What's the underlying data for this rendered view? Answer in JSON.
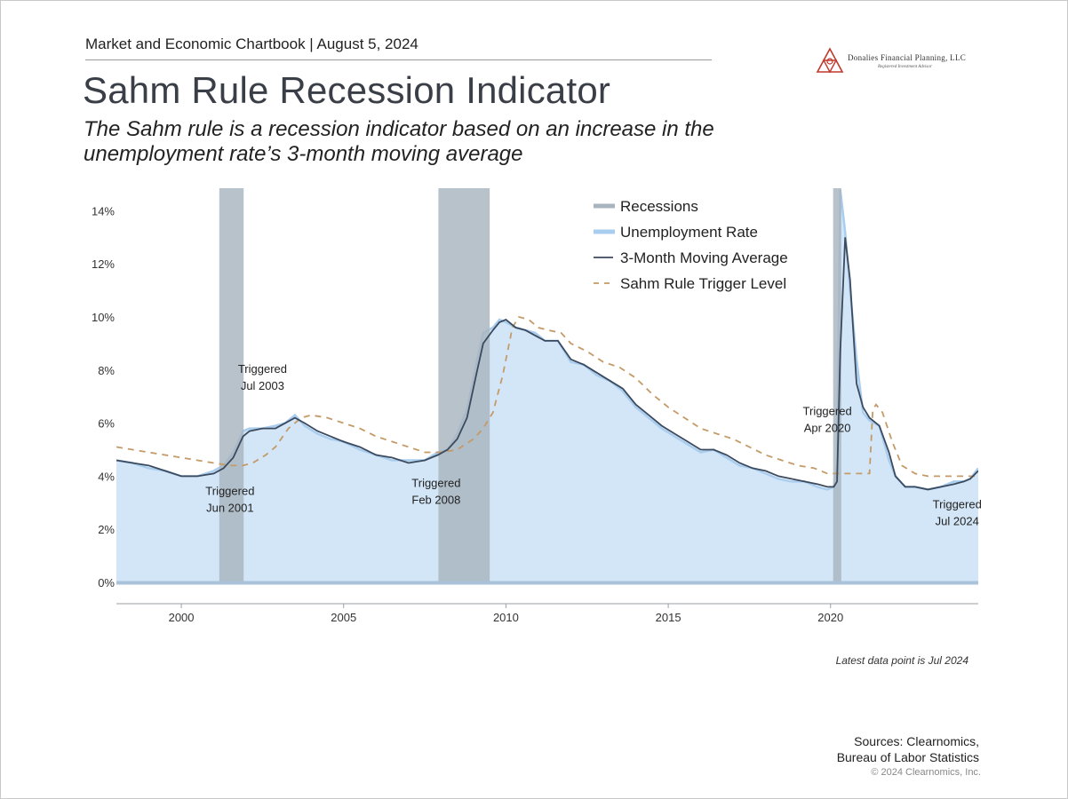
{
  "header": {
    "title_line": "Market and Economic Chartbook | August 5, 2024",
    "brand": "Donalies Financial Planning, LLC",
    "brand_sub": "Registered Investment Advisor"
  },
  "title": "Sahm Rule Recession Indicator",
  "subtitle_line1": "The Sahm rule is a recession indicator based on an increase in the",
  "subtitle_line2": "unemployment rate’s 3-month moving average",
  "footer": {
    "note": "Latest data point is Jul 2024",
    "sources_line1": "Sources: Clearnomics,",
    "sources_line2": "Bureau of Labor Statistics",
    "copyright": "© 2024 Clearnomics, Inc."
  },
  "colors": {
    "recession": "#a8b4be",
    "unemployment_fill": "#d3e6f7",
    "unemployment_line": "#a9cdee",
    "moving_average": "#3c4a5e",
    "trigger": "#c49a68",
    "brand_red": "#c0392b"
  },
  "chart_data": {
    "type": "line",
    "xlim": [
      1998.0,
      2024.55
    ],
    "ylim": [
      0,
      14
    ],
    "x_ticks": [
      2000,
      2005,
      2010,
      2015,
      2020
    ],
    "x_tick_labels": [
      "2000",
      "2005",
      "2010",
      "2015",
      "2020"
    ],
    "y_ticks": [
      0,
      2,
      4,
      6,
      8,
      10,
      12,
      14
    ],
    "y_tick_labels": [
      "0%",
      "2%",
      "4%",
      "6%",
      "8%",
      "10%",
      "12%",
      "14%"
    ],
    "legend": {
      "position": "top-right",
      "items": [
        {
          "label": "Recessions",
          "kind": "recession"
        },
        {
          "label": "Unemployment Rate",
          "kind": "unemployment"
        },
        {
          "label": "3-Month Moving Average",
          "kind": "ma"
        },
        {
          "label": "Sahm Rule Trigger Level",
          "kind": "trigger"
        }
      ]
    },
    "recessions": [
      {
        "start": 2001.17,
        "end": 2001.92
      },
      {
        "start": 2007.92,
        "end": 2009.5
      },
      {
        "start": 2020.08,
        "end": 2020.33
      }
    ],
    "series": [
      {
        "name": "Unemployment Rate",
        "x": [
          1998.0,
          1998.5,
          1999.0,
          1999.5,
          2000.0,
          2000.5,
          2001.0,
          2001.3,
          2001.6,
          2001.9,
          2002.1,
          2002.5,
          2002.9,
          2003.2,
          2003.5,
          2003.8,
          2004.2,
          2004.6,
          2005.0,
          2005.5,
          2006.0,
          2006.5,
          2007.0,
          2007.5,
          2007.9,
          2008.2,
          2008.5,
          2008.8,
          2009.1,
          2009.3,
          2009.6,
          2009.8,
          2010.0,
          2010.3,
          2010.6,
          2010.9,
          2011.2,
          2011.6,
          2012.0,
          2012.4,
          2012.8,
          2013.2,
          2013.6,
          2014.0,
          2014.4,
          2014.8,
          2015.2,
          2015.6,
          2016.0,
          2016.4,
          2016.8,
          2017.2,
          2017.6,
          2018.0,
          2018.4,
          2018.8,
          2019.2,
          2019.6,
          2019.9,
          2020.1,
          2020.2,
          2020.3,
          2020.45,
          2020.6,
          2020.8,
          2021.0,
          2021.2,
          2021.5,
          2021.8,
          2022.0,
          2022.3,
          2022.6,
          2023.0,
          2023.4,
          2023.8,
          2024.1,
          2024.3,
          2024.55
        ],
        "values": [
          4.6,
          4.5,
          4.3,
          4.2,
          4.0,
          4.0,
          4.2,
          4.4,
          4.9,
          5.7,
          5.8,
          5.8,
          5.9,
          6.0,
          6.3,
          5.9,
          5.6,
          5.4,
          5.3,
          5.0,
          4.8,
          4.6,
          4.6,
          4.6,
          4.9,
          5.0,
          5.6,
          6.5,
          8.3,
          9.4,
          9.6,
          9.9,
          9.8,
          9.6,
          9.5,
          9.4,
          9.1,
          9.1,
          8.3,
          8.2,
          7.8,
          7.6,
          7.2,
          6.6,
          6.2,
          5.8,
          5.5,
          5.2,
          4.9,
          5.0,
          4.7,
          4.4,
          4.3,
          4.1,
          3.9,
          3.8,
          3.8,
          3.6,
          3.5,
          3.6,
          4.4,
          14.8,
          13.2,
          11.0,
          8.4,
          6.4,
          6.1,
          5.9,
          4.6,
          4.0,
          3.6,
          3.6,
          3.5,
          3.6,
          3.8,
          3.8,
          3.9,
          4.3
        ]
      },
      {
        "name": "3-Month Moving Average",
        "x": [
          1998.0,
          1998.5,
          1999.0,
          1999.5,
          2000.0,
          2000.5,
          2001.0,
          2001.3,
          2001.6,
          2001.9,
          2002.1,
          2002.5,
          2002.9,
          2003.2,
          2003.5,
          2003.8,
          2004.2,
          2004.6,
          2005.0,
          2005.5,
          2006.0,
          2006.5,
          2007.0,
          2007.5,
          2007.9,
          2008.2,
          2008.5,
          2008.8,
          2009.1,
          2009.3,
          2009.6,
          2009.8,
          2010.0,
          2010.3,
          2010.6,
          2010.9,
          2011.2,
          2011.6,
          2012.0,
          2012.4,
          2012.8,
          2013.2,
          2013.6,
          2014.0,
          2014.4,
          2014.8,
          2015.2,
          2015.6,
          2016.0,
          2016.4,
          2016.8,
          2017.2,
          2017.6,
          2018.0,
          2018.4,
          2018.8,
          2019.2,
          2019.6,
          2019.9,
          2020.1,
          2020.2,
          2020.3,
          2020.45,
          2020.6,
          2020.8,
          2021.0,
          2021.2,
          2021.5,
          2021.8,
          2022.0,
          2022.3,
          2022.6,
          2023.0,
          2023.4,
          2023.8,
          2024.1,
          2024.3,
          2024.55
        ],
        "values": [
          4.6,
          4.5,
          4.4,
          4.2,
          4.0,
          4.0,
          4.1,
          4.3,
          4.7,
          5.5,
          5.7,
          5.8,
          5.8,
          6.0,
          6.2,
          6.0,
          5.7,
          5.5,
          5.3,
          5.1,
          4.8,
          4.7,
          4.5,
          4.6,
          4.8,
          5.0,
          5.4,
          6.2,
          7.9,
          9.0,
          9.5,
          9.8,
          9.9,
          9.6,
          9.5,
          9.3,
          9.1,
          9.1,
          8.4,
          8.2,
          7.9,
          7.6,
          7.3,
          6.7,
          6.3,
          5.9,
          5.6,
          5.3,
          5.0,
          5.0,
          4.8,
          4.5,
          4.3,
          4.2,
          4.0,
          3.9,
          3.8,
          3.7,
          3.6,
          3.6,
          3.8,
          8.7,
          13.0,
          11.4,
          7.5,
          6.6,
          6.2,
          5.9,
          4.9,
          4.0,
          3.6,
          3.6,
          3.5,
          3.6,
          3.7,
          3.8,
          3.9,
          4.2
        ]
      },
      {
        "name": "Sahm Rule Trigger Level",
        "x": [
          1998.0,
          1998.5,
          1999.0,
          1999.5,
          2000.0,
          2000.5,
          2001.0,
          2001.5,
          2001.9,
          2002.2,
          2002.6,
          2002.9,
          2003.3,
          2003.7,
          2004.0,
          2004.5,
          2005.0,
          2005.5,
          2006.0,
          2006.5,
          2007.0,
          2007.5,
          2008.0,
          2008.5,
          2009.0,
          2009.3,
          2009.6,
          2009.9,
          2010.2,
          2010.4,
          2010.7,
          2011.0,
          2011.3,
          2011.7,
          2012.0,
          2012.5,
          2013.0,
          2013.5,
          2014.0,
          2014.5,
          2015.0,
          2015.5,
          2016.0,
          2016.5,
          2017.0,
          2017.5,
          2018.0,
          2018.5,
          2019.0,
          2019.5,
          2019.9,
          2020.3,
          2020.6,
          2021.0,
          2021.2,
          2021.3,
          2021.4,
          2021.6,
          2021.9,
          2022.2,
          2022.6,
          2023.0,
          2023.5,
          2024.0,
          2024.55
        ],
        "values": [
          5.1,
          5.0,
          4.9,
          4.8,
          4.7,
          4.6,
          4.5,
          4.4,
          4.4,
          4.5,
          4.8,
          5.1,
          5.8,
          6.2,
          6.3,
          6.2,
          6.0,
          5.8,
          5.5,
          5.3,
          5.1,
          4.9,
          4.9,
          5.0,
          5.4,
          5.8,
          6.4,
          7.8,
          9.6,
          10.0,
          9.9,
          9.6,
          9.5,
          9.4,
          9.0,
          8.7,
          8.3,
          8.1,
          7.7,
          7.1,
          6.6,
          6.2,
          5.8,
          5.6,
          5.4,
          5.1,
          4.8,
          4.6,
          4.4,
          4.3,
          4.1,
          4.1,
          4.1,
          4.1,
          4.1,
          6.5,
          6.7,
          6.4,
          5.3,
          4.4,
          4.1,
          4.0,
          4.0,
          4.0,
          4.0
        ]
      }
    ],
    "annotations": [
      {
        "x": 2001.5,
        "y": 3.3,
        "line1": "Triggered",
        "line2": "Jun 2001"
      },
      {
        "x": 2002.5,
        "y": 7.9,
        "line1": "Triggered",
        "line2": "Jul 2003"
      },
      {
        "x": 2007.85,
        "y": 3.6,
        "line1": "Triggered",
        "line2": "Feb 2008"
      },
      {
        "x": 2019.9,
        "y": 6.3,
        "line1": "Triggered",
        "line2": "Apr 2020"
      },
      {
        "x": 2023.9,
        "y": 2.8,
        "line1": "Triggered",
        "line2": "Jul 2024"
      }
    ]
  }
}
